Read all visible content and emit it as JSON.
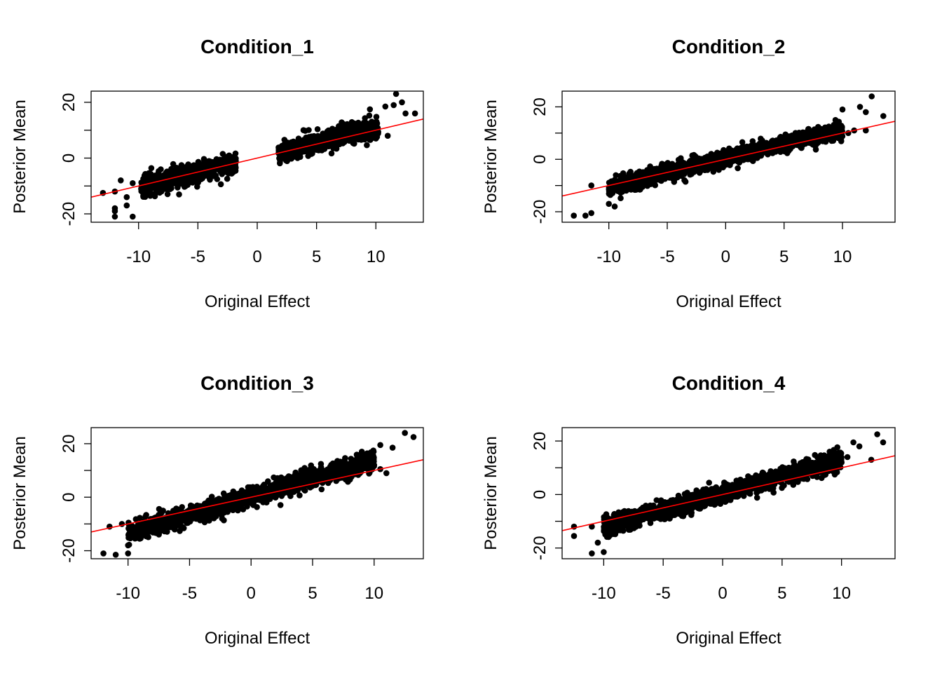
{
  "chart_data": [
    {
      "type": "scatter",
      "title": "Condition_1",
      "xlabel": "Original Effect",
      "ylabel": "Posterior Mean",
      "xlim": [
        -14,
        14
      ],
      "ylim": [
        -23,
        24
      ],
      "xticks": [
        -10,
        -5,
        0,
        5,
        10
      ],
      "xtick_labels": [
        "-10",
        "-5",
        "0",
        "5",
        "10"
      ],
      "yticks": [
        -20,
        0,
        20
      ],
      "ytick_labels": [
        "-20",
        "0",
        "20"
      ],
      "yminor": [
        -10,
        10
      ],
      "reference_line": {
        "slope": 1,
        "intercept": 0,
        "color": "#ff0000"
      },
      "point_color": "#000000",
      "clusters": [
        {
          "x_range": [
            -9.8,
            -1.8
          ],
          "slope": 1.1,
          "intercept": 0.3,
          "spread": 1.8,
          "count": 550
        },
        {
          "x_range": [
            1.8,
            10.2
          ],
          "slope": 1.1,
          "intercept": 0.0,
          "spread": 1.8,
          "count": 600
        }
      ],
      "points": [
        [
          -13,
          -12.5
        ],
        [
          -12,
          -12
        ],
        [
          -12,
          -18
        ],
        [
          -12,
          -19
        ],
        [
          -11.5,
          -8
        ],
        [
          -11,
          -14
        ],
        [
          -11,
          -17
        ],
        [
          -10.5,
          -21
        ],
        [
          -12,
          -21
        ],
        [
          -10.5,
          -9
        ],
        [
          11.7,
          23
        ],
        [
          12.2,
          20
        ],
        [
          13.3,
          16
        ],
        [
          12.5,
          16
        ],
        [
          11.5,
          19
        ],
        [
          10.8,
          18.5
        ],
        [
          9.5,
          17.5
        ],
        [
          10,
          7
        ],
        [
          11,
          8
        ]
      ]
    },
    {
      "type": "scatter",
      "title": "Condition_2",
      "xlabel": "Original Effect",
      "ylabel": "Posterior Mean",
      "xlim": [
        -14,
        14.5
      ],
      "ylim": [
        -24,
        26
      ],
      "xticks": [
        -10,
        -5,
        0,
        5,
        10
      ],
      "xtick_labels": [
        "-10",
        "-5",
        "0",
        "5",
        "10"
      ],
      "yticks": [
        -20,
        0,
        20
      ],
      "ytick_labels": [
        "-20",
        "0",
        "20"
      ],
      "yminor": [
        -10,
        10
      ],
      "reference_line": {
        "slope": 1,
        "intercept": 0,
        "color": "#ff0000"
      },
      "point_color": "#000000",
      "clusters": [
        {
          "x_range": [
            -10,
            10
          ],
          "slope": 1.1,
          "intercept": 0.3,
          "spread": 1.6,
          "count": 1400
        }
      ],
      "points": [
        [
          -13,
          -21.5
        ],
        [
          -12,
          -21.5
        ],
        [
          -11.5,
          -20.5
        ],
        [
          -11.5,
          -10
        ],
        [
          -10,
          -17
        ],
        [
          -9.5,
          -18
        ],
        [
          12.5,
          24
        ],
        [
          11.5,
          20
        ],
        [
          12,
          18
        ],
        [
          13.5,
          16.5
        ],
        [
          10.5,
          10
        ],
        [
          9,
          11
        ],
        [
          10,
          19
        ],
        [
          11,
          11
        ],
        [
          12,
          11
        ]
      ]
    },
    {
      "type": "scatter",
      "title": "Condition_3",
      "xlabel": "Original Effect",
      "ylabel": "Posterior Mean",
      "xlim": [
        -13,
        14
      ],
      "ylim": [
        -23,
        26
      ],
      "xticks": [
        -10,
        -5,
        0,
        5,
        10
      ],
      "xtick_labels": [
        "-10",
        "-5",
        "0",
        "5",
        "10"
      ],
      "yticks": [
        -20,
        0,
        20
      ],
      "ytick_labels": [
        "-20",
        "0",
        "20"
      ],
      "yminor": [
        -10,
        10
      ],
      "reference_line": {
        "slope": 1,
        "intercept": 0,
        "color": "#ff0000"
      },
      "point_color": "#000000",
      "clusters": [
        {
          "x_range": [
            -10,
            10
          ],
          "slope": 1.35,
          "intercept": 0.3,
          "spread": 1.8,
          "count": 1400
        }
      ],
      "points": [
        [
          -12,
          -21
        ],
        [
          -11,
          -21.5
        ],
        [
          -10,
          -18
        ],
        [
          -10,
          -21
        ],
        [
          -11.5,
          -11
        ],
        [
          -10.5,
          -10
        ],
        [
          12.5,
          24
        ],
        [
          13.2,
          22.5
        ],
        [
          10.5,
          19.5
        ],
        [
          11.5,
          18.5
        ],
        [
          10.5,
          10.5
        ],
        [
          11,
          9
        ],
        [
          9,
          17
        ],
        [
          10,
          12
        ]
      ]
    },
    {
      "type": "scatter",
      "title": "Condition_4",
      "xlabel": "Original Effect",
      "ylabel": "Posterior Mean",
      "xlim": [
        -13.5,
        14.5
      ],
      "ylim": [
        -24,
        25
      ],
      "xticks": [
        -10,
        -5,
        0,
        5,
        10
      ],
      "xtick_labels": [
        "-10",
        "-5",
        "0",
        "5",
        "10"
      ],
      "yticks": [
        -20,
        0,
        20
      ],
      "ytick_labels": [
        "-20",
        "0",
        "20"
      ],
      "yminor": [
        -10,
        10
      ],
      "reference_line": {
        "slope": 1,
        "intercept": 0,
        "color": "#ff0000"
      },
      "point_color": "#000000",
      "clusters": [
        {
          "x_range": [
            -10,
            10
          ],
          "slope": 1.25,
          "intercept": 0.3,
          "spread": 1.7,
          "count": 1400
        }
      ],
      "points": [
        [
          -12.5,
          -15.5
        ],
        [
          -12.5,
          -12
        ],
        [
          -11,
          -22
        ],
        [
          -10.5,
          -18
        ],
        [
          -10,
          -21.5
        ],
        [
          -11,
          -12
        ],
        [
          -9.5,
          -10
        ],
        [
          13,
          22.5
        ],
        [
          13.5,
          19.5
        ],
        [
          11,
          19.5
        ],
        [
          11.5,
          18
        ],
        [
          12.5,
          13
        ],
        [
          9,
          16
        ],
        [
          10.5,
          14
        ],
        [
          10,
          12
        ]
      ]
    }
  ]
}
